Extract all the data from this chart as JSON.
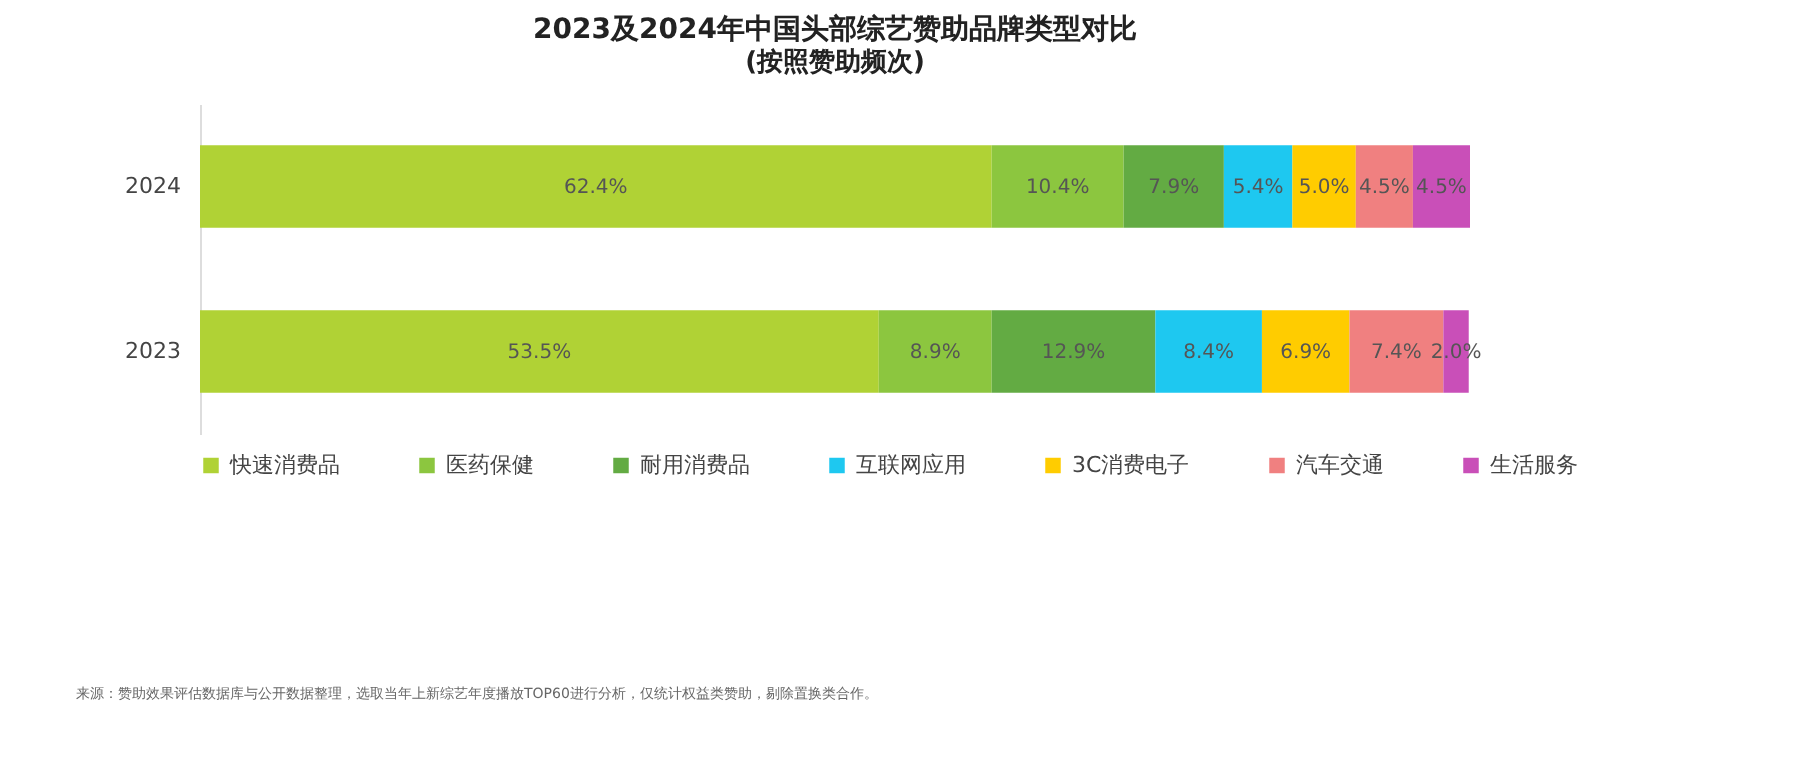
{
  "chart_data": {
    "type": "bar",
    "orientation": "horizontal",
    "stacked": true,
    "title": "2023及2024年中国头部综艺赞助品牌类型对比",
    "subtitle": "(按照赞助频次)",
    "categories": [
      "2024",
      "2023"
    ],
    "legend": "bottom",
    "series": [
      {
        "name": "快速消费品",
        "color": "#b0d235",
        "values": [
          62.4,
          53.5
        ],
        "value_labels": [
          "62.4%",
          "53.5%"
        ]
      },
      {
        "name": "医药保健",
        "color": "#8cc63f",
        "values": [
          10.4,
          8.9
        ],
        "value_labels": [
          "10.4%",
          "8.9%"
        ]
      },
      {
        "name": "耐用消费品",
        "color": "#63ab43",
        "values": [
          7.9,
          12.9
        ],
        "value_labels": [
          "7.9%",
          "12.9%"
        ]
      },
      {
        "name": "互联网应用",
        "color": "#1ec8f0",
        "values": [
          5.4,
          8.4
        ],
        "value_labels": [
          "5.4%",
          "8.4%"
        ]
      },
      {
        "name": "3C消费电子",
        "color": "#ffcc00",
        "values": [
          5.0,
          6.9
        ],
        "value_labels": [
          "5.0%",
          "6.9%"
        ]
      },
      {
        "name": "汽车交通",
        "color": "#f08080",
        "values": [
          4.5,
          7.4
        ],
        "value_labels": [
          "4.5%",
          "7.4%"
        ]
      },
      {
        "name": "生活服务",
        "color": "#c94fb8",
        "values": [
          4.5,
          2.0
        ],
        "value_labels": [
          "4.5%",
          "2.0%"
        ]
      }
    ],
    "annotations": [
      "来源：赞助效果评估数据库与公开数据整理，选取当年上新综艺年度播放TOP60进行分析，仅统计权益类赞助，剔除置换类合作。"
    ]
  }
}
